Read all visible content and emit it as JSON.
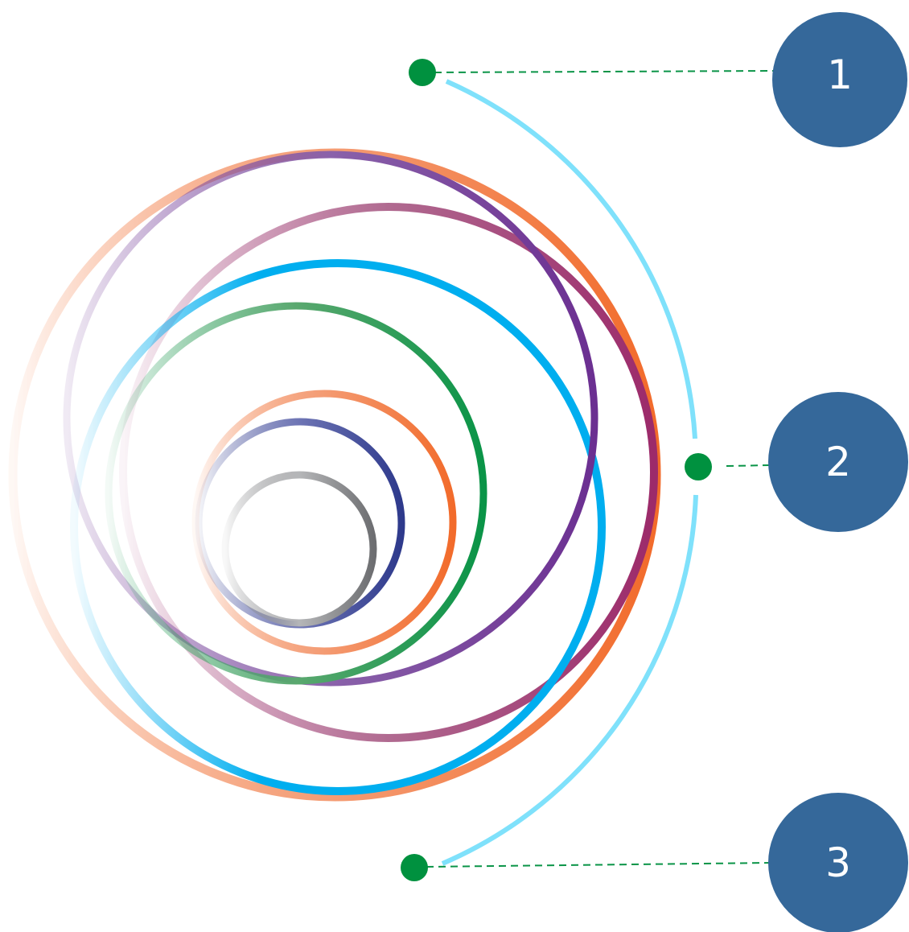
{
  "nodes": [
    {
      "label": "1"
    },
    {
      "label": "2"
    },
    {
      "label": "3"
    }
  ]
}
